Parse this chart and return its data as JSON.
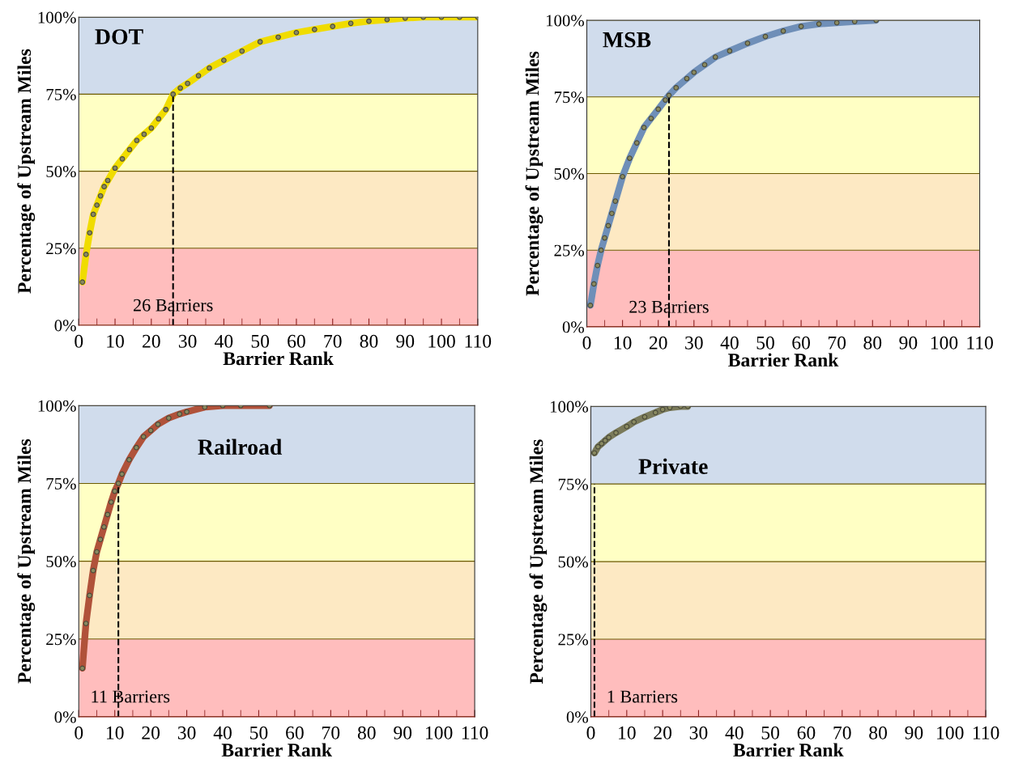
{
  "chart_data": [
    {
      "type": "line",
      "title": "DOT",
      "xlabel": "Barrier Rank",
      "ylabel": "Percentage of Upstream Miles",
      "marker": "circle",
      "line_style": "solid",
      "grid": "y",
      "legend": false,
      "xlim": [
        0,
        110
      ],
      "xticks": [
        0,
        10,
        20,
        30,
        40,
        50,
        60,
        70,
        80,
        90,
        100,
        110
      ],
      "ylim": [
        0,
        100
      ],
      "yticks": [
        {
          "value": 0,
          "label": "0%"
        },
        {
          "value": 25,
          "label": "25%"
        },
        {
          "value": 50,
          "label": "50%"
        },
        {
          "value": 75,
          "label": "75%"
        },
        {
          "value": 100,
          "label": "100%"
        }
      ],
      "bands": [
        {
          "axis": "y",
          "from": 0,
          "to": 25,
          "color": "#ffbdbd"
        },
        {
          "axis": "y",
          "from": 25,
          "to": 50,
          "color": "#fde9c3"
        },
        {
          "axis": "y",
          "from": 50,
          "to": 75,
          "color": "#ffffc4"
        },
        {
          "axis": "y",
          "from": 75,
          "to": 100,
          "color": "#d0dcec"
        }
      ],
      "ref_lines": [
        {
          "axis": "x",
          "value": 26,
          "label": "26 Barriers",
          "line_style": "dashed",
          "color": "#000000"
        }
      ],
      "series": [
        {
          "color": "#f0dc00",
          "x": [
            1,
            2,
            3,
            4,
            5,
            6,
            7,
            8,
            10,
            12,
            14,
            16,
            18,
            20,
            22,
            24,
            26,
            28,
            30,
            33,
            36,
            40,
            45,
            50,
            55,
            60,
            65,
            70,
            75,
            80,
            85,
            90,
            95,
            100,
            105,
            110
          ],
          "values": [
            14,
            23,
            30,
            36,
            39,
            42,
            45,
            47,
            51,
            54,
            57,
            60,
            62,
            64,
            67,
            70,
            75,
            77,
            78.5,
            81,
            83.5,
            86,
            89,
            92,
            93.5,
            95,
            96,
            97,
            98,
            98.7,
            99.2,
            99.7,
            100,
            100,
            100,
            100
          ]
        }
      ]
    },
    {
      "type": "line",
      "title": "MSB",
      "xlabel": "Barrier Rank",
      "ylabel": "Percentage of Upstream Miles",
      "marker": "circle",
      "line_style": "solid",
      "grid": "y",
      "legend": false,
      "xlim": [
        0,
        110
      ],
      "xticks": [
        0,
        10,
        20,
        30,
        40,
        50,
        60,
        70,
        80,
        90,
        100,
        110
      ],
      "ylim": [
        0,
        100
      ],
      "yticks": [
        {
          "value": 0,
          "label": "0%"
        },
        {
          "value": 25,
          "label": "25%"
        },
        {
          "value": 50,
          "label": "50%"
        },
        {
          "value": 75,
          "label": "75%"
        },
        {
          "value": 100,
          "label": "100%"
        }
      ],
      "bands": [
        {
          "axis": "y",
          "from": 0,
          "to": 25,
          "color": "#ffbdbd"
        },
        {
          "axis": "y",
          "from": 25,
          "to": 50,
          "color": "#fde9c3"
        },
        {
          "axis": "y",
          "from": 50,
          "to": 75,
          "color": "#ffffc4"
        },
        {
          "axis": "y",
          "from": 75,
          "to": 100,
          "color": "#d0dcec"
        }
      ],
      "ref_lines": [
        {
          "axis": "x",
          "value": 23,
          "label": "23 Barriers",
          "line_style": "dashed",
          "color": "#000000"
        }
      ],
      "series": [
        {
          "color": "#6f8fb8",
          "x": [
            1,
            2,
            3,
            4,
            5,
            6,
            7,
            8,
            10,
            12,
            14,
            16,
            18,
            20,
            22,
            23,
            25,
            28,
            30,
            33,
            36,
            40,
            45,
            50,
            55,
            60,
            65,
            70,
            75,
            81
          ],
          "values": [
            7,
            14,
            20,
            25,
            29,
            33,
            37,
            41,
            49,
            55,
            60,
            65,
            68,
            71,
            74,
            75.5,
            78,
            81,
            83,
            85.5,
            88,
            90,
            92.5,
            94.7,
            96.5,
            98,
            98.8,
            99.2,
            99.6,
            100
          ]
        }
      ]
    },
    {
      "type": "line",
      "title": "Railroad",
      "xlabel": "Barrier Rank",
      "ylabel": "Percentage of Upstream Miles",
      "marker": "circle",
      "line_style": "solid",
      "grid": "y",
      "legend": false,
      "xlim": [
        0,
        110
      ],
      "xticks": [
        0,
        10,
        20,
        30,
        40,
        50,
        60,
        70,
        80,
        90,
        100,
        110
      ],
      "ylim": [
        0,
        100
      ],
      "yticks": [
        {
          "value": 0,
          "label": "0%"
        },
        {
          "value": 25,
          "label": "25%"
        },
        {
          "value": 50,
          "label": "50%"
        },
        {
          "value": 75,
          "label": "75%"
        },
        {
          "value": 100,
          "label": "100%"
        }
      ],
      "bands": [
        {
          "axis": "y",
          "from": 0,
          "to": 25,
          "color": "#ffbdbd"
        },
        {
          "axis": "y",
          "from": 25,
          "to": 50,
          "color": "#fde9c3"
        },
        {
          "axis": "y",
          "from": 50,
          "to": 75,
          "color": "#ffffc4"
        },
        {
          "axis": "y",
          "from": 75,
          "to": 100,
          "color": "#d0dcec"
        }
      ],
      "ref_lines": [
        {
          "axis": "x",
          "value": 11,
          "label": "11 Barriers",
          "line_style": "dashed",
          "color": "#000000"
        }
      ],
      "series": [
        {
          "color": "#b0523a",
          "x": [
            1,
            2,
            3,
            4,
            5,
            6,
            7,
            8,
            9,
            10,
            11,
            12,
            14,
            16,
            18,
            20,
            22,
            25,
            28,
            30,
            35,
            40,
            45,
            53
          ],
          "values": [
            15.6,
            30,
            39,
            47,
            53,
            57,
            61,
            65,
            69,
            72.5,
            75,
            78,
            82.6,
            86.5,
            90,
            92,
            94,
            96,
            97.3,
            98,
            99.5,
            100,
            100,
            100
          ]
        }
      ]
    },
    {
      "type": "line",
      "title": "Private",
      "xlabel": "Barrier Rank",
      "ylabel": "Percentage of Upstream Miles",
      "marker": "circle",
      "line_style": "solid",
      "grid": "y",
      "legend": false,
      "xlim": [
        0,
        110
      ],
      "xticks": [
        0,
        10,
        20,
        30,
        40,
        50,
        60,
        70,
        80,
        90,
        100,
        110
      ],
      "ylim": [
        0,
        100
      ],
      "yticks": [
        {
          "value": 0,
          "label": "0%"
        },
        {
          "value": 25,
          "label": "25%"
        },
        {
          "value": 50,
          "label": "50%"
        },
        {
          "value": 75,
          "label": "75%"
        },
        {
          "value": 100,
          "label": "100%"
        }
      ],
      "bands": [
        {
          "axis": "y",
          "from": 0,
          "to": 25,
          "color": "#ffbdbd"
        },
        {
          "axis": "y",
          "from": 25,
          "to": 50,
          "color": "#fde9c3"
        },
        {
          "axis": "y",
          "from": 50,
          "to": 75,
          "color": "#ffffc4"
        },
        {
          "axis": "y",
          "from": 75,
          "to": 100,
          "color": "#d0dcec"
        }
      ],
      "ref_lines": [
        {
          "axis": "x",
          "value": 1,
          "label": "1 Barriers",
          "line_style": "dashed",
          "color": "#000000"
        }
      ],
      "series": [
        {
          "color": "#7a7a5a",
          "x": [
            1,
            2,
            3,
            4,
            5,
            7,
            10,
            12,
            15,
            18,
            20,
            22,
            25,
            27
          ],
          "values": [
            85,
            87,
            88,
            89,
            90,
            91.5,
            93.5,
            95,
            96.6,
            98,
            99,
            99.6,
            100,
            100
          ]
        }
      ]
    }
  ]
}
